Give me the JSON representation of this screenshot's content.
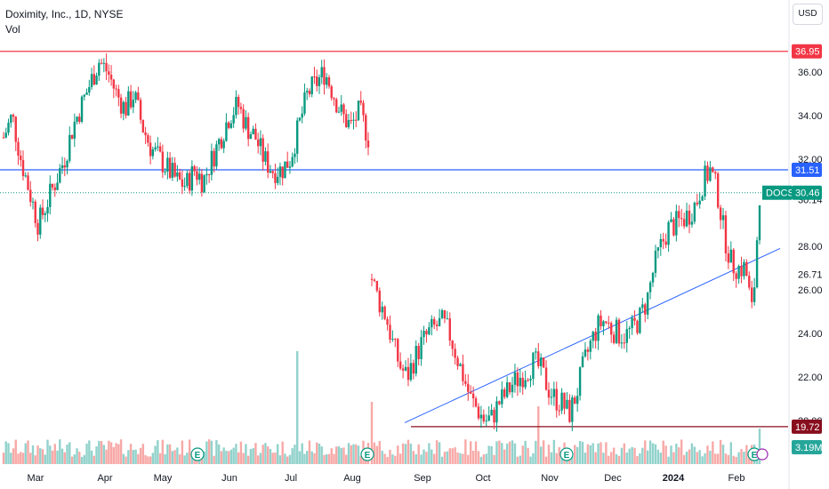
{
  "header": {
    "title": "Doximity, Inc., 1D, NYSE",
    "vol_label": "Vol",
    "currency_button": "USD"
  },
  "chart_data": {
    "type": "candlestick",
    "symbol": "DOCS",
    "ylim": [
      19.3,
      37.4
    ],
    "y_ticks": [
      "36.00",
      "34.00",
      "32.00",
      "30.14",
      "28.00",
      "26.71",
      "26.00",
      "24.00",
      "22.00",
      "20.00"
    ],
    "x_ticks": [
      "Mar",
      "Apr",
      "May",
      "Jun",
      "Jul",
      "Aug",
      "Sep",
      "Oct",
      "Nov",
      "Dec",
      "2024",
      "Feb"
    ],
    "price_tags": [
      {
        "id": "resistance",
        "label": "36.95",
        "color": "#f23645"
      },
      {
        "id": "support_blue",
        "label": "31.51",
        "color": "#2962ff"
      },
      {
        "id": "last",
        "symbol": "DOCS",
        "label": "30.46",
        "color": "#089981"
      },
      {
        "id": "bottom",
        "label": "19.72",
        "color": "#880e1e"
      },
      {
        "id": "volume",
        "label": "3.19M",
        "color": "#26a69a"
      }
    ],
    "lines": [
      {
        "type": "horizontal",
        "value": 36.95,
        "color": "#f23645"
      },
      {
        "type": "horizontal",
        "value": 31.51,
        "color": "#2962ff"
      },
      {
        "type": "horizontal",
        "value": 30.46,
        "style": "dotted",
        "color": "#089981"
      },
      {
        "type": "horizontal",
        "value": 19.72,
        "color": "#880e1e",
        "from": "Sep",
        "to": "Feb"
      },
      {
        "type": "trendline",
        "from": [
          "Sep",
          19.9
        ],
        "to": [
          "Feb",
          27.9
        ],
        "color": "#2962ff"
      }
    ],
    "earnings_markers": [
      "May",
      "Aug",
      "Nov",
      "Feb"
    ],
    "series": [
      {
        "segment": 1,
        "start": "late Feb",
        "end": "mid Aug",
        "close": [
          33,
          34,
          32,
          30.5,
          29,
          30,
          31,
          32,
          33.5,
          34.5,
          35.5,
          36.5,
          36,
          35,
          34.3,
          35,
          33.5,
          32.5,
          32,
          31.5,
          31,
          30.8,
          31.5,
          31,
          32,
          33,
          34,
          34.5,
          33.5,
          33,
          32,
          31.5,
          31.5,
          32,
          33.5,
          35,
          35.5,
          36,
          35,
          34,
          33.5,
          34.2,
          33
        ]
      },
      {
        "segment": 2,
        "start": "early Aug",
        "end": "early Feb",
        "close": [
          26.5,
          25.5,
          24.8,
          23.5,
          22.5,
          22,
          22.8,
          23.5,
          24,
          24.3,
          24.5,
          24,
          23,
          22,
          21,
          20.5,
          20,
          20.1,
          20.8,
          21.2,
          21.7,
          22,
          22.3,
          22.7,
          22.3,
          21.5,
          21,
          20.8,
          20.3,
          21.2,
          22.5,
          23.5,
          24.3,
          24.6,
          24.2,
          24,
          23.9,
          24.2,
          24.7,
          25.5,
          27,
          28,
          28.8,
          29,
          29.2,
          29.5,
          30,
          31,
          31.5,
          30.5,
          28.5,
          27.2,
          27,
          27,
          24.8,
          30.46
        ]
      }
    ]
  }
}
